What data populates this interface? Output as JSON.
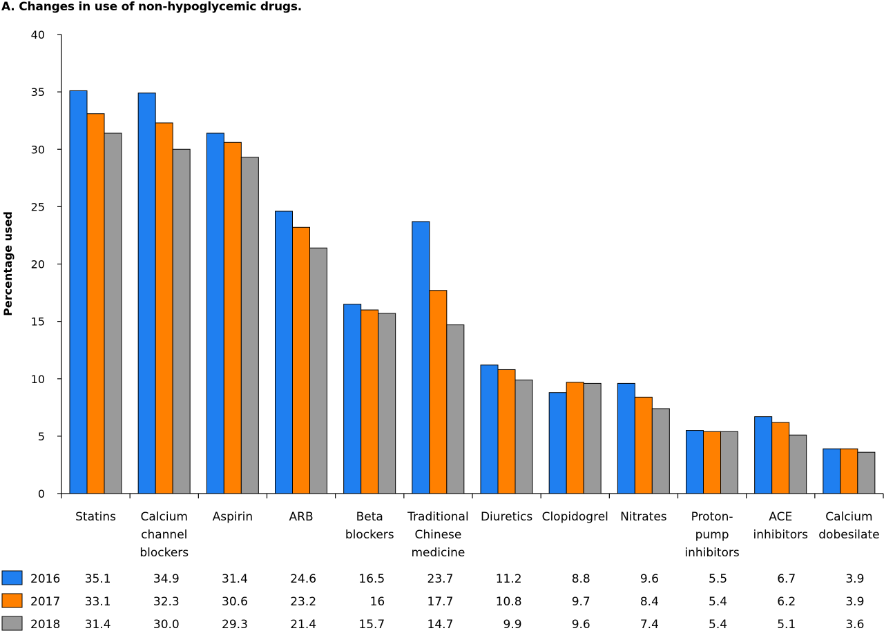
{
  "chart_data": {
    "type": "bar",
    "title": "A. Changes in use of non-hypoglycemic drugs.",
    "xlabel": "",
    "ylabel": "Percentage used",
    "ylim": [
      0,
      40
    ],
    "yticks": [
      0,
      5,
      10,
      15,
      20,
      25,
      30,
      35,
      40
    ],
    "grid": false,
    "legend": "data table below the chart",
    "categories": [
      [
        "Statins"
      ],
      [
        "Calcium",
        "channel",
        "blockers"
      ],
      [
        "Aspirin"
      ],
      [
        "ARB"
      ],
      [
        "Beta",
        "blockers"
      ],
      [
        "Traditional",
        "Chinese",
        "medicine"
      ],
      [
        "Diuretics"
      ],
      [
        "Clopidogrel"
      ],
      [
        "Nitrates"
      ],
      [
        "Proton-",
        "pump",
        "inhibitors"
      ],
      [
        "ACE",
        "inhibitors"
      ],
      [
        "Calcium",
        "dobesilate"
      ]
    ],
    "series": [
      {
        "name": "2016",
        "color": "#1f7ff0",
        "values": [
          35.1,
          34.9,
          31.4,
          24.6,
          16.5,
          23.7,
          11.2,
          8.8,
          9.6,
          5.5,
          6.7,
          3.9
        ],
        "labels": [
          "35.1",
          "34.9",
          "31.4",
          "24.6",
          "16.5",
          "23.7",
          "11.2",
          "8.8",
          "9.6",
          "5.5",
          "6.7",
          "3.9"
        ]
      },
      {
        "name": "2017",
        "color": "#ff8000",
        "values": [
          33.1,
          32.3,
          30.6,
          23.2,
          16,
          17.7,
          10.8,
          9.7,
          8.4,
          5.4,
          6.2,
          3.9
        ],
        "labels": [
          "33.1",
          "32.3",
          "30.6",
          "23.2",
          "16",
          "17.7",
          "10.8",
          "9.7",
          "8.4",
          "5.4",
          "6.2",
          "3.9"
        ]
      },
      {
        "name": "2018",
        "color": "#9a9a9a",
        "values": [
          31.4,
          30.0,
          29.3,
          21.4,
          15.7,
          14.7,
          9.9,
          9.6,
          7.4,
          5.4,
          5.1,
          3.6
        ],
        "labels": [
          "31.4",
          "30.0",
          "29.3",
          "21.4",
          "15.7",
          "14.7",
          "9.9",
          "9.6",
          "7.4",
          "5.4",
          "5.1",
          "3.6"
        ]
      }
    ]
  }
}
